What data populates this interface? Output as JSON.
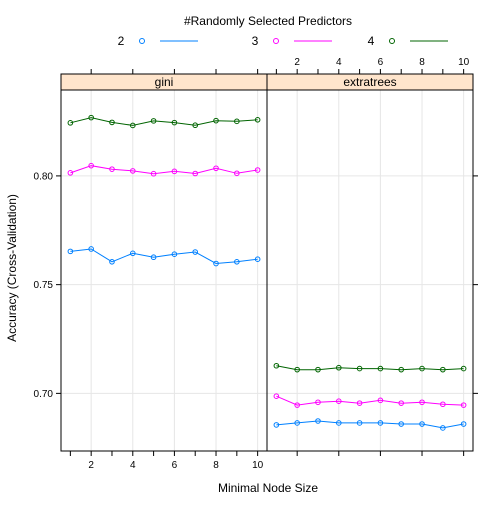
{
  "chart_data": {
    "type": "line",
    "legend": {
      "title": "#Randomly Selected Predictors",
      "placement": "top",
      "entries": [
        {
          "label": "2",
          "color": "#0080ff"
        },
        {
          "label": "3",
          "color": "#ff00ff"
        },
        {
          "label": "4",
          "color": "#006400"
        }
      ]
    },
    "xlabel": "Minimal Node Size",
    "ylabel": "Accuracy (Cross-Validation)",
    "xlim": [
      0.55,
      10.45
    ],
    "ylim": [
      0.6735,
      0.8395
    ],
    "x_ticks": [
      "2",
      "4",
      "6",
      "8",
      "10"
    ],
    "y_ticks": [
      "0.70",
      "0.75",
      "0.80"
    ],
    "grid": true,
    "x": [
      1,
      2,
      3,
      4,
      5,
      6,
      7,
      8,
      9,
      10
    ],
    "panels": [
      {
        "name": "gini",
        "series": [
          {
            "name": "2",
            "color": "#0080ff",
            "values": [
              0.7653,
              0.7664,
              0.7605,
              0.7644,
              0.7626,
              0.764,
              0.765,
              0.7597,
              0.7605,
              0.7617
            ]
          },
          {
            "name": "3",
            "color": "#ff00ff",
            "values": [
              0.8014,
              0.8047,
              0.8031,
              0.8023,
              0.801,
              0.8021,
              0.8011,
              0.8035,
              0.8012,
              0.8027
            ]
          },
          {
            "name": "4",
            "color": "#006400",
            "values": [
              0.8244,
              0.8268,
              0.8246,
              0.8232,
              0.8253,
              0.8245,
              0.8233,
              0.8254,
              0.8251,
              0.8258
            ]
          }
        ]
      },
      {
        "name": "extratrees",
        "series": [
          {
            "name": "2",
            "color": "#0080ff",
            "values": [
              0.6855,
              0.6864,
              0.6873,
              0.6864,
              0.6864,
              0.6864,
              0.6859,
              0.6859,
              0.6841,
              0.6859
            ]
          },
          {
            "name": "3",
            "color": "#ff00ff",
            "values": [
              0.6987,
              0.6946,
              0.6959,
              0.6964,
              0.6955,
              0.6968,
              0.6955,
              0.6959,
              0.695,
              0.6946
            ]
          },
          {
            "name": "4",
            "color": "#006400",
            "values": [
              0.7127,
              0.7109,
              0.7109,
              0.7118,
              0.7114,
              0.7114,
              0.7109,
              0.7114,
              0.7109,
              0.7114
            ]
          }
        ]
      }
    ]
  }
}
